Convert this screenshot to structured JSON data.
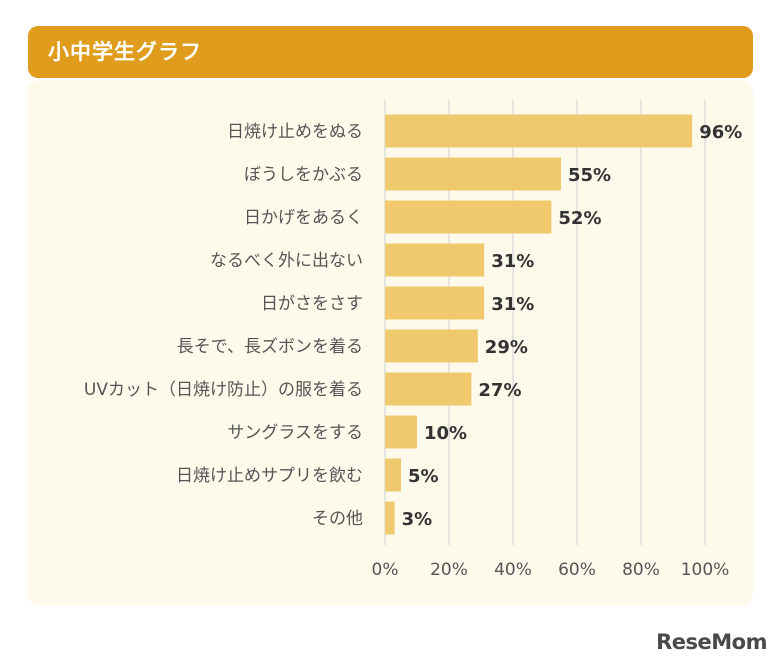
{
  "header": {
    "title": "小中学生グラフ"
  },
  "logo": {
    "text": "ReseMom"
  },
  "colors": {
    "header": "#e09c1c",
    "bar": "#f0c96e",
    "panel": "#fdfaeb",
    "grid": "#dcdcdc"
  },
  "chart_data": {
    "type": "bar",
    "orientation": "horizontal",
    "title": "小中学生グラフ",
    "categories": [
      "日焼け止めをぬる",
      "ぼうしをかぶる",
      "日かげをあるく",
      "なるべく外に出ない",
      "日がさをさす",
      "長そで、長ズボンを着る",
      "UVカット（日焼け防止）の服を着る",
      "サングラスをする",
      "日焼け止めサプリを飲む",
      "その他"
    ],
    "values": [
      96,
      55,
      52,
      31,
      31,
      29,
      27,
      10,
      5,
      3
    ],
    "value_labels": [
      "96%",
      "55%",
      "52%",
      "31%",
      "31%",
      "29%",
      "27%",
      "10%",
      "5%",
      "3%"
    ],
    "xlim": [
      0,
      100
    ],
    "x_ticks": [
      0,
      20,
      40,
      60,
      80,
      100
    ],
    "x_tick_labels": [
      "0%",
      "20%",
      "40%",
      "60%",
      "80%",
      "100%"
    ],
    "grid": true,
    "legend": "none"
  }
}
